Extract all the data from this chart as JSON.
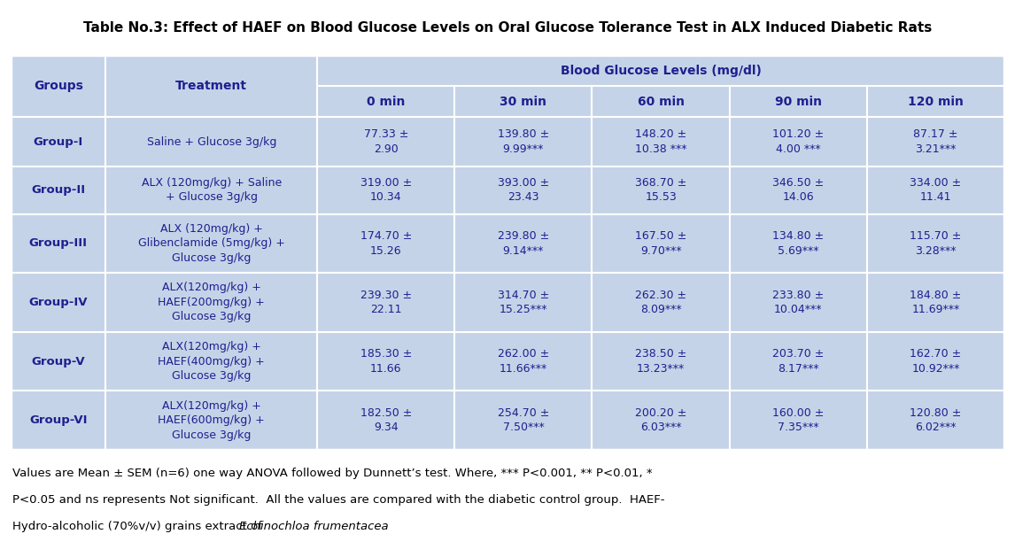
{
  "title": "Table No.3: Effect of HAEF on Blood Glucose Levels on Oral Glucose Tolerance Test in ALX Induced Diabetic Rats",
  "bg_color": "#c5d3e8",
  "text_color": "#1f1f8f",
  "border_color": "#ffffff",
  "col_header_span": "Blood Glucose Levels (mg/dl)",
  "time_labels": [
    "0 min",
    "30 min",
    "60 min",
    "90 min",
    "120 min"
  ],
  "groups": [
    "Group-I",
    "Group-II",
    "Group-III",
    "Group-IV",
    "Group-V",
    "Group-VI"
  ],
  "treatments": [
    "Saline + Glucose 3g/kg",
    "ALX (120mg/kg) + Saline\n+ Glucose 3g/kg",
    "ALX (120mg/kg) +\nGlibenclamide (5mg/kg) +\nGlucose 3g/kg",
    "ALX(120mg/kg) +\nHAEF(200mg/kg) +\nGlucose 3g/kg",
    "ALX(120mg/kg) +\nHAEF(400mg/kg) +\nGlucose 3g/kg",
    "ALX(120mg/kg) +\nHAEF(600mg/kg) +\nGlucose 3g/kg"
  ],
  "data": [
    [
      "77.33 ±\n2.90",
      "139.80 ±\n9.99***",
      "148.20 ±\n10.38 ***",
      "101.20 ±\n4.00 ***",
      "87.17 ±\n3.21***"
    ],
    [
      "319.00 ±\n10.34",
      "393.00 ±\n23.43",
      "368.70 ±\n15.53",
      "346.50 ±\n14.06",
      "334.00 ±\n11.41"
    ],
    [
      "174.70 ±\n15.26",
      "239.80 ±\n9.14***",
      "167.50 ±\n9.70***",
      "134.80 ±\n5.69***",
      "115.70 ±\n3.28***"
    ],
    [
      "239.30 ±\n22.11",
      "314.70 ±\n15.25***",
      "262.30 ±\n8.09***",
      "233.80 ±\n10.04***",
      "184.80 ±\n11.69***"
    ],
    [
      "185.30 ±\n11.66",
      "262.00 ±\n11.66***",
      "238.50 ±\n13.23***",
      "203.70 ±\n8.17***",
      "162.70 ±\n10.92***"
    ],
    [
      "182.50 ±\n9.34",
      "254.70 ±\n7.50***",
      "200.20 ±\n6.03***",
      "160.00 ±\n7.35***",
      "120.80 ±\n6.02***"
    ]
  ],
  "footnote_line1": "Values are Mean ± SEM (n=6) one way ANOVA followed by Dunnett’s test. Where, *** P<0.001, ** P<0.01, *",
  "footnote_line2": "P<0.05 and ns represents Not significant.  All the values are compared with the diabetic control group.  HAEF-",
  "footnote_line3_normal": "Hydro-alcoholic (70%v/v) grains extract of ",
  "footnote_line3_italic": "Echinochloa frumentacea",
  "footnote_line3_end": ".",
  "fig_width": 11.46,
  "fig_height": 6.03,
  "dpi": 100
}
